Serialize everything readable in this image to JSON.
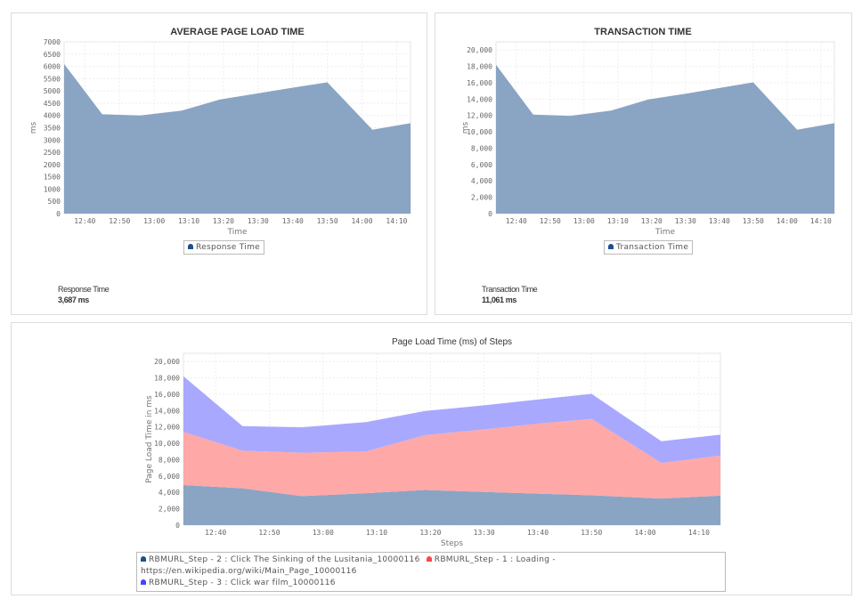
{
  "colors": {
    "step2": "#8aa4c4",
    "step1": "#ffa8a8",
    "step3": "#a8a8ff",
    "legend_step2": "#1f4e8c",
    "legend_step1": "#ff4444",
    "legend_step3": "#4444ff"
  },
  "chart_data": [
    {
      "type": "area",
      "title": "AVERAGE PAGE LOAD TIME",
      "xlabel": "Time",
      "ylabel": "ms",
      "x": [
        "12:34",
        "12:45",
        "12:56",
        "13:08",
        "13:19",
        "13:30",
        "13:40",
        "13:50",
        "14:03",
        "14:14"
      ],
      "xticks": [
        "12:40",
        "12:50",
        "13:00",
        "13:10",
        "13:20",
        "13:30",
        "13:40",
        "13:50",
        "14:00",
        "14:10"
      ],
      "yticks": [
        "0",
        "500",
        "1000",
        "1500",
        "2000",
        "2500",
        "3000",
        "3500",
        "4000",
        "4500",
        "5000",
        "5500",
        "6000",
        "6500",
        "7000"
      ],
      "ylim": [
        0,
        7000
      ],
      "series": [
        {
          "name": "Response Time",
          "values": [
            6100,
            4050,
            4000,
            4200,
            4650,
            4900,
            5130,
            5350,
            3420,
            3687
          ]
        }
      ]
    },
    {
      "type": "area",
      "title": "TRANSACTION TIME",
      "xlabel": "Time",
      "ylabel": "ms",
      "x": [
        "12:34",
        "12:45",
        "12:56",
        "13:08",
        "13:19",
        "13:30",
        "13:40",
        "13:50",
        "14:03",
        "14:14"
      ],
      "xticks": [
        "12:40",
        "12:50",
        "13:00",
        "13:10",
        "13:20",
        "13:30",
        "13:40",
        "13:50",
        "14:00",
        "14:10"
      ],
      "yticks": [
        "0",
        "2,000",
        "4,000",
        "6,000",
        "8,000",
        "10,000",
        "12,000",
        "14,000",
        "16,000",
        "18,000",
        "20,000"
      ],
      "ylim": [
        0,
        21000
      ],
      "series": [
        {
          "name": "Transaction Time",
          "values": [
            18200,
            12100,
            11950,
            12600,
            13950,
            14650,
            15350,
            16050,
            10250,
            11061
          ]
        }
      ]
    },
    {
      "type": "area",
      "stacked": true,
      "title": "Page Load Time (ms) of Steps",
      "xlabel": "Steps",
      "ylabel": "Page Load Time in ms",
      "x": [
        "12:34",
        "12:45",
        "12:56",
        "13:08",
        "13:19",
        "13:30",
        "13:40",
        "13:50",
        "14:03",
        "14:14"
      ],
      "xticks": [
        "12:40",
        "12:50",
        "13:00",
        "13:10",
        "13:20",
        "13:30",
        "13:40",
        "13:50",
        "14:00",
        "14:10"
      ],
      "yticks": [
        "0",
        "2,000",
        "4,000",
        "6,000",
        "8,000",
        "10,000",
        "12,000",
        "14,000",
        "16,000",
        "18,000",
        "20,000"
      ],
      "ylim": [
        0,
        21000
      ],
      "series": [
        {
          "name": "RBMURL_Step - 2 : Click The Sinking of the Lusitania_10000116",
          "values": [
            4900,
            4500,
            3550,
            3900,
            4300,
            4050,
            3850,
            3650,
            3250,
            3600
          ]
        },
        {
          "name": "RBMURL_Step - 1 : Loading - https://en.wikipedia.org/wiki/Main_Page_10000116",
          "values": [
            6500,
            4600,
            5300,
            5100,
            6700,
            7650,
            8550,
            9350,
            4350,
            4900
          ]
        },
        {
          "name": "RBMURL_Step - 3 : Click war film_10000116",
          "values": [
            6800,
            3000,
            3100,
            3600,
            2950,
            2950,
            2950,
            3050,
            2650,
            2561
          ]
        }
      ]
    }
  ],
  "summaries": [
    {
      "label": "Response Time",
      "value": "3,687 ms"
    },
    {
      "label": "Transaction Time",
      "value": "11,061 ms"
    }
  ]
}
